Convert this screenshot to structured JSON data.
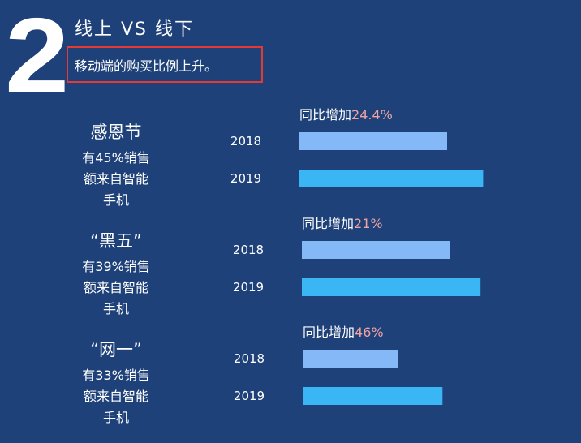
{
  "header": {
    "number": "2",
    "title": "线上 VS 线下",
    "subtitle": "移动端的购买比例上升。"
  },
  "colors": {
    "background": "#1d4178",
    "bar_2018": "#84b8f7",
    "bar_2019": "#3ab6f5",
    "growth_highlight": "#f0a3a3",
    "highlight_box": "#e53935"
  },
  "chart_data": {
    "type": "bar",
    "orientation": "horizontal",
    "title": "",
    "xlabel": "",
    "ylabel": "",
    "groups": [
      {
        "event": "感恩节",
        "desc": [
          "有45%销售",
          "额来自智能",
          "手机"
        ],
        "growth_label": "同比增加",
        "growth_value": "24.4%",
        "bars": [
          {
            "year": "2018",
            "value": 1.0
          },
          {
            "year": "2019",
            "value": 1.244
          }
        ]
      },
      {
        "event": "“黑五”",
        "desc": [
          "有39%销售",
          "额来自智能",
          "手机"
        ],
        "growth_label": "同比增加",
        "growth_value": "21%",
        "bars": [
          {
            "year": "2018",
            "value": 1.0
          },
          {
            "year": "2019",
            "value": 1.21
          }
        ]
      },
      {
        "event": "“网一”",
        "desc": [
          "有33%销售",
          "额来自智能",
          "手机"
        ],
        "growth_label": "同比增加",
        "growth_value": "46%",
        "bars": [
          {
            "year": "2018",
            "value": 1.0
          },
          {
            "year": "2019",
            "value": 1.46
          }
        ]
      }
    ]
  }
}
